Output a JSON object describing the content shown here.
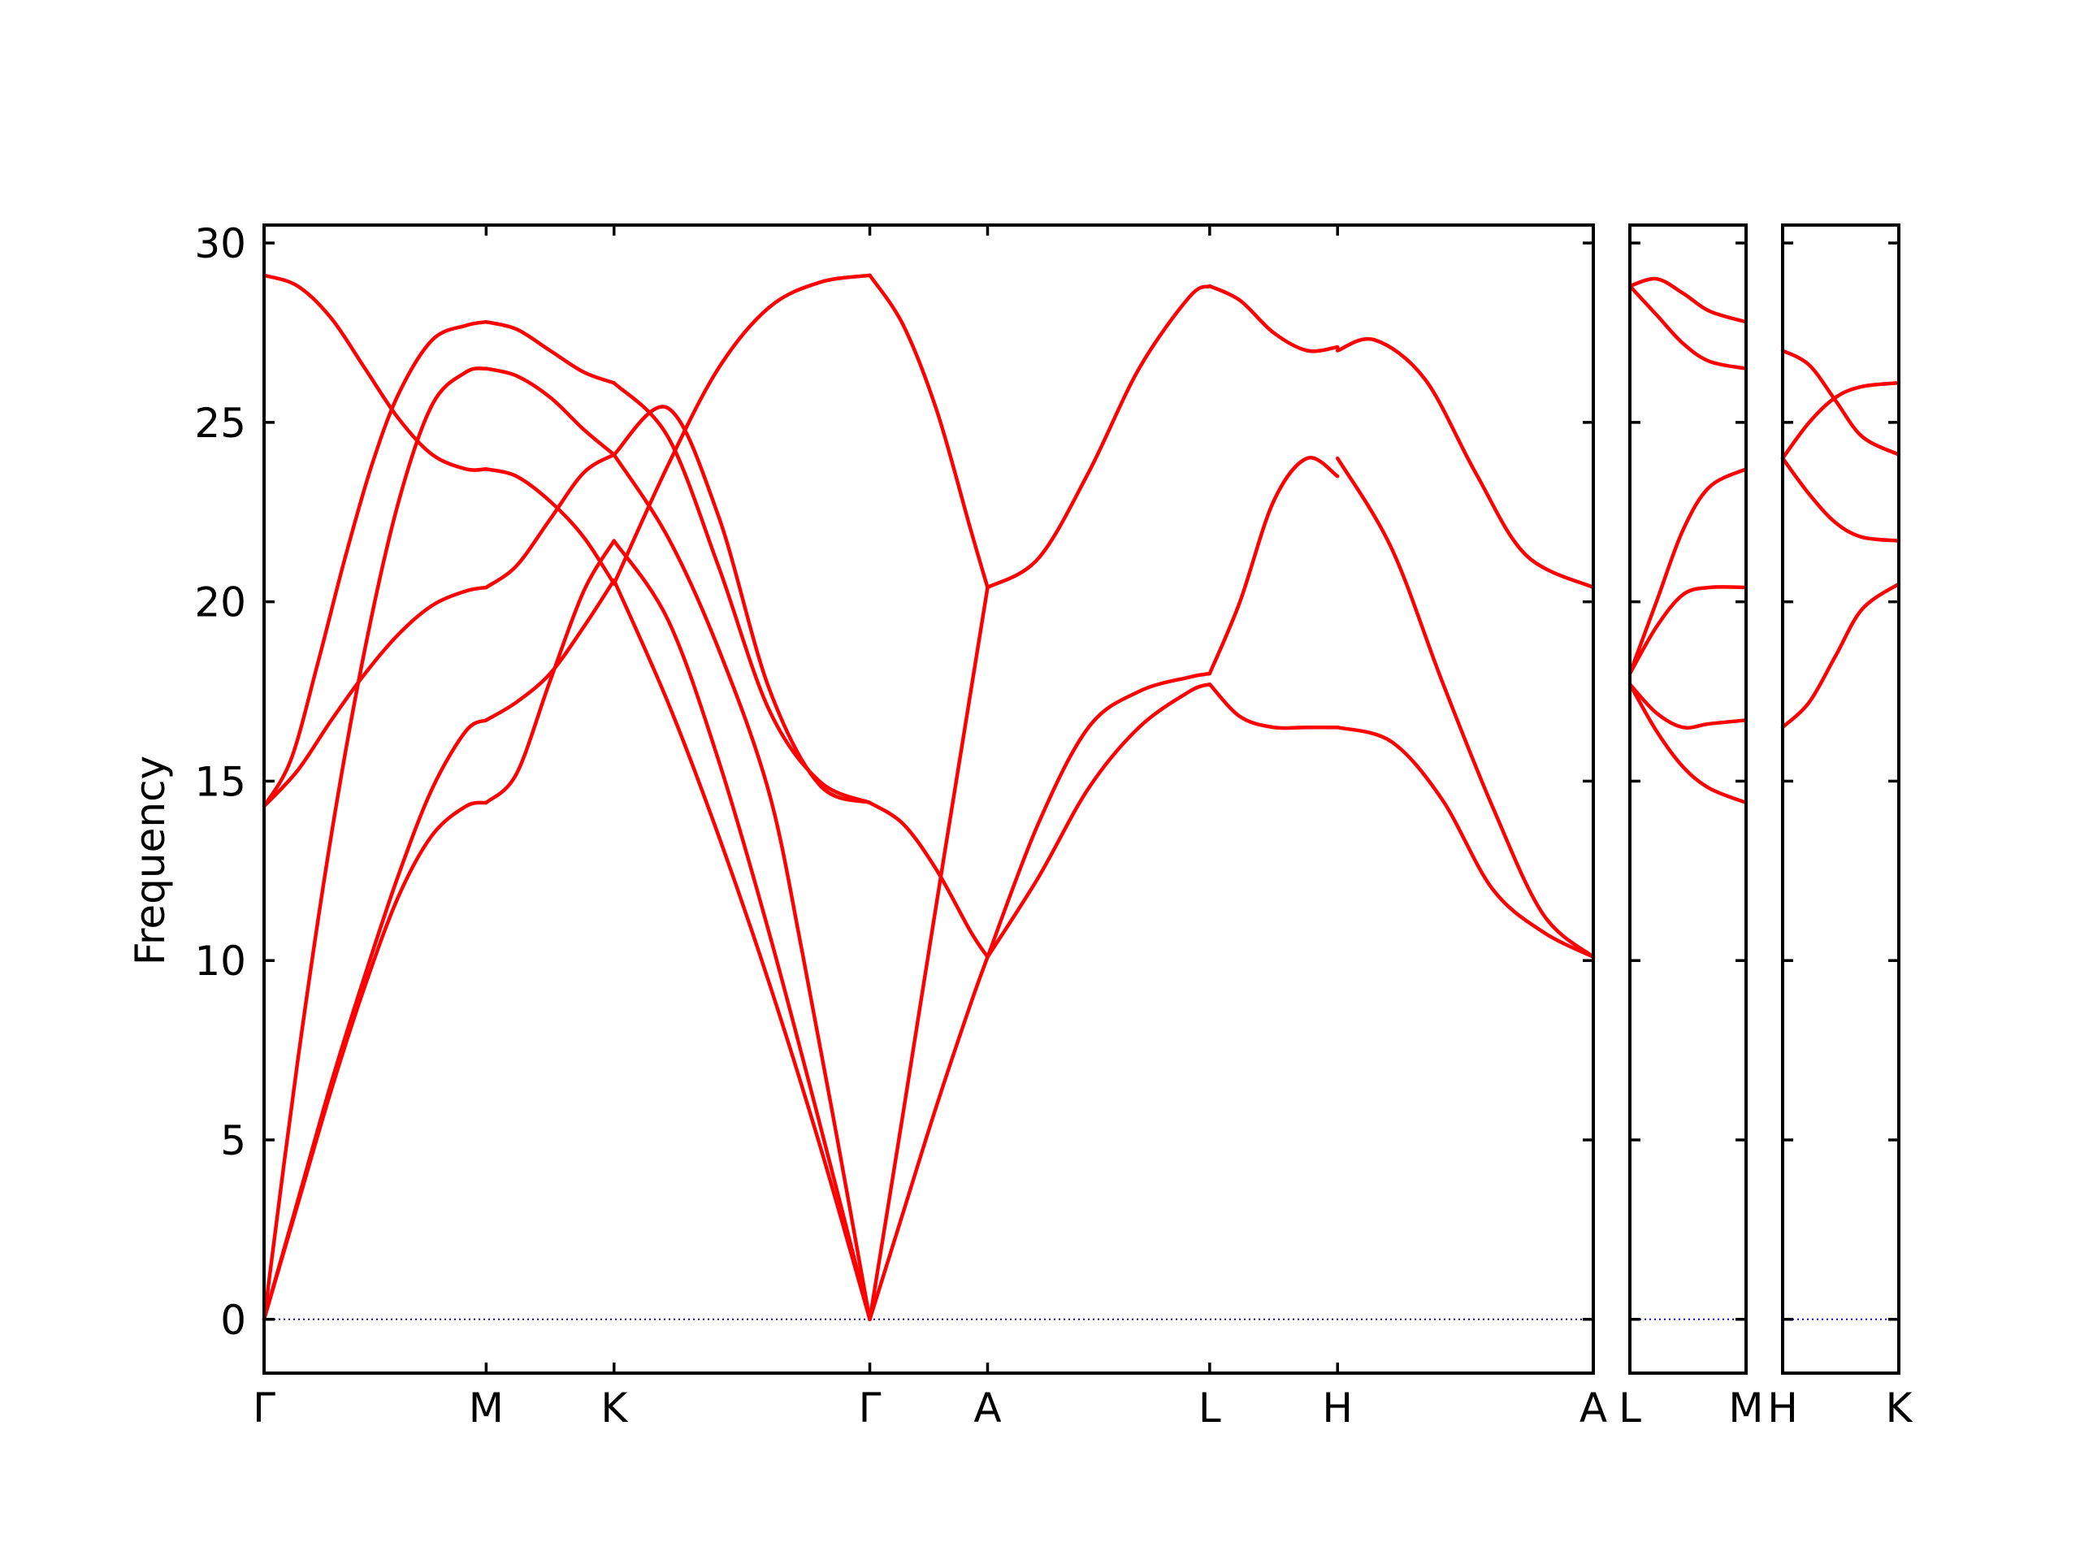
{
  "chart_data": {
    "type": "line",
    "title": "",
    "ylabel": "Frequency",
    "ylim": [
      -1.5,
      30.5
    ],
    "yticks": [
      0,
      5,
      10,
      15,
      20,
      25,
      30
    ],
    "grid": false,
    "colors": {
      "bands": "#ff0000",
      "zero_line": "#0000ff",
      "axes": "#000000"
    },
    "panels": [
      {
        "x_range": [
          0,
          3.95
        ],
        "xticks": [
          {
            "x": 0,
            "label": "Γ"
          },
          {
            "x": 0.66,
            "label": "M"
          },
          {
            "x": 1.04,
            "label": "K"
          },
          {
            "x": 1.8,
            "label": "Γ"
          },
          {
            "x": 2.15,
            "label": "A"
          },
          {
            "x": 2.81,
            "label": "L"
          },
          {
            "x": 3.19,
            "label": "H"
          },
          {
            "x": 3.95,
            "label": "A"
          }
        ],
        "series": [
          {
            "x": [
              0,
              0.1,
              0.2,
              0.3,
              0.4,
              0.5,
              0.6,
              0.66
            ],
            "y": [
              0,
              3.2,
              6.4,
              9.3,
              11.8,
              13.5,
              14.3,
              14.4
            ]
          },
          {
            "x": [
              0,
              0.1,
              0.2,
              0.3,
              0.4,
              0.5,
              0.6,
              0.66
            ],
            "y": [
              0,
              3.3,
              6.6,
              9.6,
              12.4,
              14.8,
              16.4,
              16.7
            ]
          },
          {
            "x": [
              0,
              0.1,
              0.2,
              0.3,
              0.4,
              0.5,
              0.6,
              0.66
            ],
            "y": [
              0,
              7.2,
              13.5,
              18.7,
              22.8,
              25.5,
              26.4,
              26.5
            ]
          },
          {
            "x": [
              0,
              0.08,
              0.16,
              0.24,
              0.32,
              0.4,
              0.5,
              0.6,
              0.66
            ],
            "y": [
              14.3,
              15.6,
              18.3,
              21.2,
              23.8,
              25.8,
              27.3,
              27.7,
              27.8
            ]
          },
          {
            "x": [
              0,
              0.1,
              0.2,
              0.3,
              0.4,
              0.5,
              0.6,
              0.66
            ],
            "y": [
              14.3,
              15.3,
              16.7,
              18.0,
              19.1,
              19.9,
              20.3,
              20.4
            ]
          },
          {
            "x": [
              0,
              0.1,
              0.2,
              0.3,
              0.4,
              0.5,
              0.6,
              0.66
            ],
            "y": [
              29.1,
              28.8,
              27.9,
              26.5,
              25.1,
              24.1,
              23.7,
              23.7
            ]
          },
          {
            "x": [
              0.66,
              0.75,
              0.85,
              0.95,
              1.04
            ],
            "y": [
              14.4,
              15.2,
              17.8,
              20.3,
              21.7
            ]
          },
          {
            "x": [
              0.66,
              0.75,
              0.85,
              0.95,
              1.04
            ],
            "y": [
              16.7,
              17.2,
              18.0,
              19.3,
              20.6
            ]
          },
          {
            "x": [
              0.66,
              0.75,
              0.85,
              0.95,
              1.04
            ],
            "y": [
              20.4,
              21.0,
              22.3,
              23.6,
              24.1
            ]
          },
          {
            "x": [
              0.66,
              0.75,
              0.85,
              0.95,
              1.04
            ],
            "y": [
              23.7,
              23.5,
              22.8,
              21.8,
              20.5
            ]
          },
          {
            "x": [
              0.66,
              0.75,
              0.85,
              0.95,
              1.04
            ],
            "y": [
              26.5,
              26.3,
              25.7,
              24.8,
              24.1
            ]
          },
          {
            "x": [
              0.66,
              0.75,
              0.85,
              0.95,
              1.04
            ],
            "y": [
              27.8,
              27.6,
              27.0,
              26.4,
              26.1
            ]
          },
          {
            "x": [
              1.04,
              1.2,
              1.35,
              1.5,
              1.65,
              1.8
            ],
            "y": [
              21.7,
              19.5,
              15.6,
              10.8,
              5.5,
              0
            ]
          },
          {
            "x": [
              1.04,
              1.2,
              1.35,
              1.5,
              1.65,
              1.8
            ],
            "y": [
              20.6,
              17.2,
              13.5,
              9.4,
              4.9,
              0
            ]
          },
          {
            "x": [
              1.04,
              1.2,
              1.35,
              1.5,
              1.6,
              1.7,
              1.8
            ],
            "y": [
              24.1,
              21.8,
              18.7,
              14.7,
              10.2,
              5.2,
              0
            ]
          },
          {
            "x": [
              1.04,
              1.2,
              1.35,
              1.5,
              1.65,
              1.8
            ],
            "y": [
              26.1,
              24.6,
              21.0,
              17.0,
              15.0,
              14.4
            ]
          },
          {
            "x": [
              1.04,
              1.2,
              1.35,
              1.5,
              1.65,
              1.8
            ],
            "y": [
              24.1,
              25.4,
              22.4,
              17.6,
              14.9,
              14.4
            ]
          },
          {
            "x": [
              1.04,
              1.2,
              1.35,
              1.5,
              1.65,
              1.8
            ],
            "y": [
              20.5,
              23.8,
              26.5,
              28.2,
              28.9,
              29.1
            ]
          },
          {
            "x": [
              1.8,
              1.9,
              2.0,
              2.1,
              2.15
            ],
            "y": [
              0,
              3.0,
              6.0,
              8.8,
              10.1
            ]
          },
          {
            "x": [
              1.8,
              1.9,
              2.0,
              2.1,
              2.15
            ],
            "y": [
              0,
              5.8,
              11.7,
              17.5,
              20.4
            ]
          },
          {
            "x": [
              1.8,
              1.9,
              2.0,
              2.1,
              2.15
            ],
            "y": [
              14.4,
              13.8,
              12.5,
              10.8,
              10.1
            ]
          },
          {
            "x": [
              1.8,
              1.9,
              2.0,
              2.1,
              2.15
            ],
            "y": [
              29.1,
              27.7,
              25.3,
              22.0,
              20.4
            ]
          },
          {
            "x": [
              2.15,
              2.3,
              2.45,
              2.6,
              2.75,
              2.81
            ],
            "y": [
              10.1,
              12.3,
              14.8,
              16.5,
              17.5,
              17.7
            ]
          },
          {
            "x": [
              2.15,
              2.3,
              2.45,
              2.6,
              2.75,
              2.81
            ],
            "y": [
              10.1,
              13.8,
              16.5,
              17.5,
              17.9,
              18.0
            ]
          },
          {
            "x": [
              2.15,
              2.3,
              2.45,
              2.6,
              2.75,
              2.81
            ],
            "y": [
              20.4,
              21.2,
              23.6,
              26.5,
              28.5,
              28.8
            ]
          },
          {
            "x": [
              2.81,
              2.9,
              3.0,
              3.1,
              3.19
            ],
            "y": [
              17.7,
              16.8,
              16.5,
              16.5,
              16.5
            ]
          },
          {
            "x": [
              2.81,
              2.9,
              3.0,
              3.1,
              3.19
            ],
            "y": [
              18.0,
              20.0,
              22.8,
              24.0,
              23.5
            ]
          },
          {
            "x": [
              2.81,
              2.9,
              3.0,
              3.1,
              3.19
            ],
            "y": [
              28.8,
              28.4,
              27.5,
              27.0,
              27.1
            ]
          },
          {
            "x": [
              3.19,
              3.35,
              3.5,
              3.65,
              3.8,
              3.95
            ],
            "y": [
              16.5,
              16.1,
              14.5,
              12.0,
              10.8,
              10.1
            ]
          },
          {
            "x": [
              3.19,
              3.35,
              3.5,
              3.65,
              3.8,
              3.95
            ],
            "y": [
              24.0,
              21.5,
              17.8,
              14.3,
              11.3,
              10.1
            ]
          },
          {
            "x": [
              3.19,
              3.3,
              3.45,
              3.6,
              3.75,
              3.95
            ],
            "y": [
              27.0,
              27.3,
              26.2,
              23.6,
              21.3,
              20.4
            ]
          }
        ]
      },
      {
        "x_range": [
          0,
          0.35
        ],
        "xticks": [
          {
            "x": 0,
            "label": "L"
          },
          {
            "x": 0.35,
            "label": "M"
          }
        ],
        "series": [
          {
            "x": [
              0,
              0.08,
              0.16,
              0.24,
              0.35
            ],
            "y": [
              17.7,
              16.4,
              15.4,
              14.8,
              14.4
            ]
          },
          {
            "x": [
              0,
              0.08,
              0.16,
              0.24,
              0.35
            ],
            "y": [
              17.7,
              16.9,
              16.5,
              16.6,
              16.7
            ]
          },
          {
            "x": [
              0,
              0.08,
              0.16,
              0.24,
              0.35
            ],
            "y": [
              18.0,
              19.3,
              20.2,
              20.4,
              20.4
            ]
          },
          {
            "x": [
              0,
              0.08,
              0.16,
              0.24,
              0.35
            ],
            "y": [
              18.0,
              20.0,
              22.0,
              23.2,
              23.7
            ]
          },
          {
            "x": [
              0,
              0.08,
              0.16,
              0.24,
              0.35
            ],
            "y": [
              28.8,
              28.0,
              27.2,
              26.7,
              26.5
            ]
          },
          {
            "x": [
              0,
              0.08,
              0.16,
              0.24,
              0.35
            ],
            "y": [
              28.8,
              29.0,
              28.6,
              28.1,
              27.8
            ]
          }
        ]
      },
      {
        "x_range": [
          0,
          0.35
        ],
        "xticks": [
          {
            "x": 0,
            "label": "H"
          },
          {
            "x": 0.35,
            "label": "K"
          }
        ],
        "series": [
          {
            "x": [
              0,
              0.08,
              0.16,
              0.24,
              0.35
            ],
            "y": [
              16.5,
              17.2,
              18.5,
              19.8,
              20.5
            ]
          },
          {
            "x": [
              0,
              0.08,
              0.16,
              0.24,
              0.35
            ],
            "y": [
              24.0,
              23.0,
              22.2,
              21.8,
              21.7
            ]
          },
          {
            "x": [
              0,
              0.08,
              0.16,
              0.24,
              0.35
            ],
            "y": [
              24.0,
              25.0,
              25.7,
              26.0,
              26.1
            ]
          },
          {
            "x": [
              0,
              0.08,
              0.16,
              0.24,
              0.35
            ],
            "y": [
              27.0,
              26.6,
              25.6,
              24.6,
              24.1
            ]
          }
        ]
      }
    ]
  }
}
